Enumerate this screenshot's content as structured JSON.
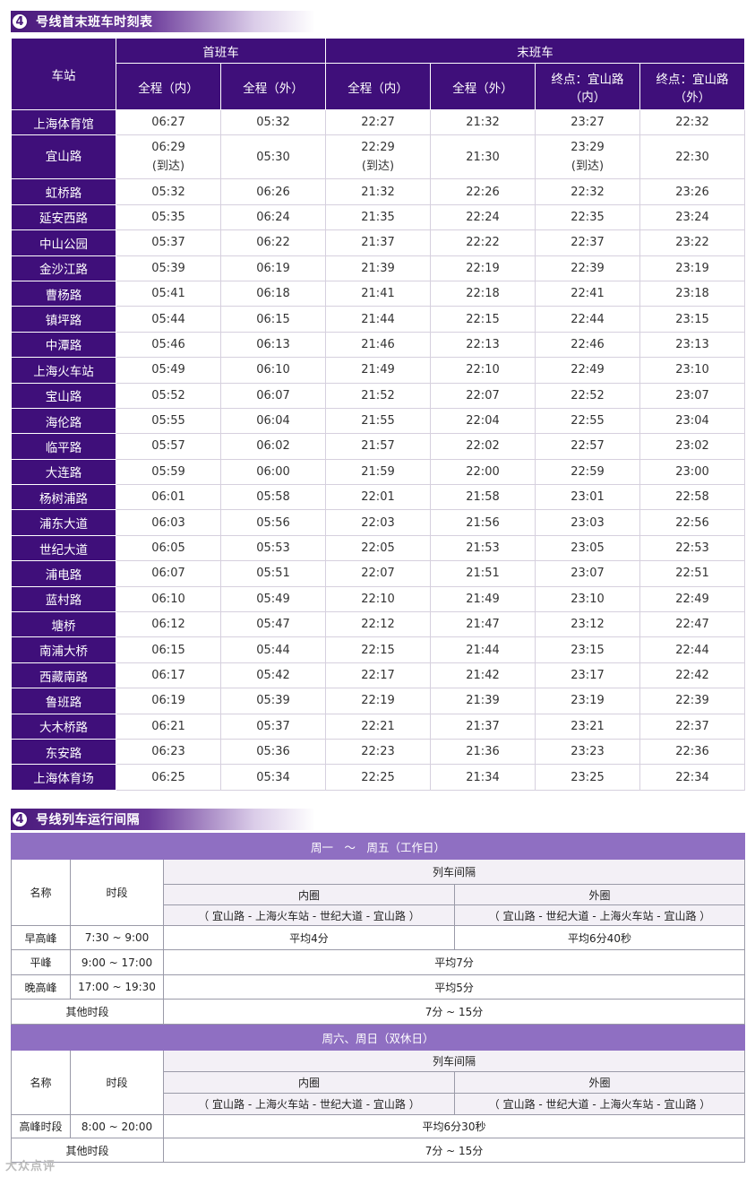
{
  "section1": {
    "num": "4",
    "title": "号线首末班车时刻表"
  },
  "timetable": {
    "station_header": "车站",
    "first_train": "首班车",
    "last_train": "末班车",
    "col_inner": "全程（内）",
    "col_outer": "全程（外）",
    "col_term_inner_1": "终点：宜山路",
    "col_term_inner_2": "（内）",
    "col_term_outer_1": "终点：宜山路",
    "col_term_outer_2": "（外）",
    "arrive_note": "(到达)",
    "rows": [
      [
        "上海体育馆",
        "06:27",
        "05:32",
        "22:27",
        "21:32",
        "23:27",
        "22:32"
      ],
      [
        "宜山路",
        "06:29",
        "05:30",
        "22:29",
        "21:30",
        "23:29",
        "22:30"
      ],
      [
        "虹桥路",
        "05:32",
        "06:26",
        "21:32",
        "22:26",
        "22:32",
        "23:26"
      ],
      [
        "延安西路",
        "05:35",
        "06:24",
        "21:35",
        "22:24",
        "22:35",
        "23:24"
      ],
      [
        "中山公园",
        "05:37",
        "06:22",
        "21:37",
        "22:22",
        "22:37",
        "23:22"
      ],
      [
        "金沙江路",
        "05:39",
        "06:19",
        "21:39",
        "22:19",
        "22:39",
        "23:19"
      ],
      [
        "曹杨路",
        "05:41",
        "06:18",
        "21:41",
        "22:18",
        "22:41",
        "23:18"
      ],
      [
        "镇坪路",
        "05:44",
        "06:15",
        "21:44",
        "22:15",
        "22:44",
        "23:15"
      ],
      [
        "中潭路",
        "05:46",
        "06:13",
        "21:46",
        "22:13",
        "22:46",
        "23:13"
      ],
      [
        "上海火车站",
        "05:49",
        "06:10",
        "21:49",
        "22:10",
        "22:49",
        "23:10"
      ],
      [
        "宝山路",
        "05:52",
        "06:07",
        "21:52",
        "22:07",
        "22:52",
        "23:07"
      ],
      [
        "海伦路",
        "05:55",
        "06:04",
        "21:55",
        "22:04",
        "22:55",
        "23:04"
      ],
      [
        "临平路",
        "05:57",
        "06:02",
        "21:57",
        "22:02",
        "22:57",
        "23:02"
      ],
      [
        "大连路",
        "05:59",
        "06:00",
        "21:59",
        "22:00",
        "22:59",
        "23:00"
      ],
      [
        "杨树浦路",
        "06:01",
        "05:58",
        "22:01",
        "21:58",
        "23:01",
        "22:58"
      ],
      [
        "浦东大道",
        "06:03",
        "05:56",
        "22:03",
        "21:56",
        "23:03",
        "22:56"
      ],
      [
        "世纪大道",
        "06:05",
        "05:53",
        "22:05",
        "21:53",
        "23:05",
        "22:53"
      ],
      [
        "浦电路",
        "06:07",
        "05:51",
        "22:07",
        "21:51",
        "23:07",
        "22:51"
      ],
      [
        "蓝村路",
        "06:10",
        "05:49",
        "22:10",
        "21:49",
        "23:10",
        "22:49"
      ],
      [
        "塘桥",
        "06:12",
        "05:47",
        "22:12",
        "21:47",
        "23:12",
        "22:47"
      ],
      [
        "南浦大桥",
        "06:15",
        "05:44",
        "22:15",
        "21:44",
        "23:15",
        "22:44"
      ],
      [
        "西藏南路",
        "06:17",
        "05:42",
        "22:17",
        "21:42",
        "23:17",
        "22:42"
      ],
      [
        "鲁班路",
        "06:19",
        "05:39",
        "22:19",
        "21:39",
        "23:19",
        "22:39"
      ],
      [
        "大木桥路",
        "06:21",
        "05:37",
        "22:21",
        "21:37",
        "23:21",
        "22:37"
      ],
      [
        "东安路",
        "06:23",
        "05:36",
        "22:23",
        "21:36",
        "23:23",
        "22:36"
      ],
      [
        "上海体育场",
        "06:25",
        "05:34",
        "22:25",
        "21:34",
        "23:25",
        "22:34"
      ]
    ]
  },
  "section2": {
    "num": "4",
    "title": "号线列车运行间隔"
  },
  "interval": {
    "weekday_band": "周一　～　周五（工作日）",
    "weekend_band": "周六、周日（双休日）",
    "name_header": "名称",
    "period_header": "时段",
    "interval_header": "列车间隔",
    "inner_loop": "内圈",
    "inner_route": "（ 宜山路 - 上海火车站 - 世纪大道 - 宜山路 ）",
    "outer_loop": "外圈",
    "outer_route": "（ 宜山路 - 世纪大道 - 上海火车站 - 宜山路 ）",
    "weekday_rows": [
      {
        "name": "早高峰",
        "period": "7:30 ~ 9:00",
        "inner": "平均4分",
        "outer": "平均6分40秒"
      },
      {
        "name": "平峰",
        "period": "9:00 ~ 17:00",
        "both": "平均7分"
      },
      {
        "name": "晚高峰",
        "period": "17:00 ~ 19:30",
        "both": "平均5分"
      },
      {
        "name": "其他时段",
        "both": "7分 ~ 15分"
      }
    ],
    "weekend_rows": [
      {
        "name": "高峰时段",
        "period": "8:00 ~ 20:00",
        "both": "平均6分30秒"
      },
      {
        "name": "其他时段",
        "both": "7分 ~ 15分"
      }
    ]
  },
  "watermark": "大众点评"
}
